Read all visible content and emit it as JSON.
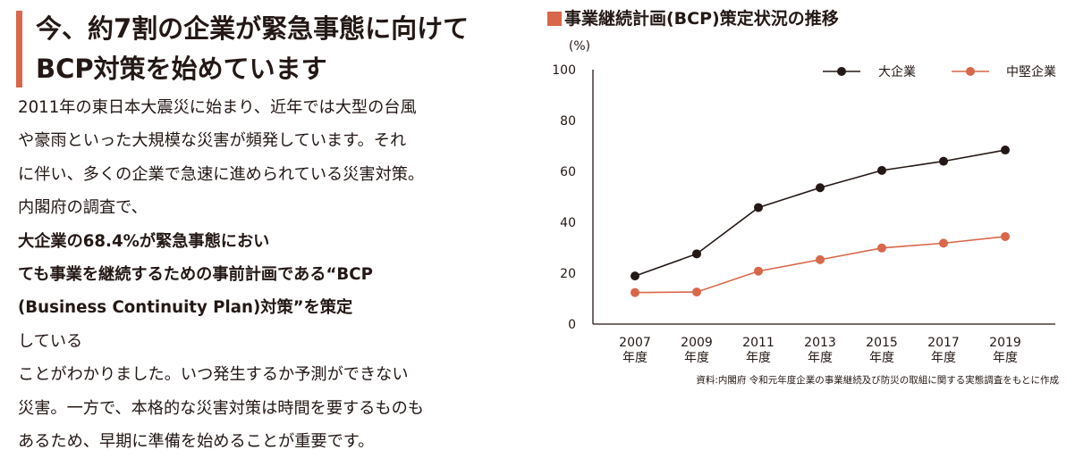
{
  "article": {
    "headline_lines": [
      "今、約7割の企業が緊急事態に向けて",
      "BCP対策を始めています"
    ],
    "body_lines": [
      [
        {
          "t": "2011年の東日本大震災に始まり、近年では大型の台風",
          "b": false
        }
      ],
      [
        {
          "t": "や豪雨といった大規模な災害が頻発しています。それ",
          "b": false
        }
      ],
      [
        {
          "t": "に伴い、多くの企業で急速に進められている災害対策。",
          "b": false
        }
      ],
      [
        {
          "t": "内閣府の調査で、",
          "b": false
        },
        {
          "t": "大企業の68.4%が緊急事態におい",
          "b": true
        }
      ],
      [
        {
          "t": "ても事業を継続するための事前計画である“BCP",
          "b": true
        }
      ],
      [
        {
          "t": "(Business Continuity Plan)対策”を策定",
          "b": true
        },
        {
          "t": "している",
          "b": false
        }
      ],
      [
        {
          "t": "ことがわかりました。いつ発生するか予測ができない",
          "b": false
        }
      ],
      [
        {
          "t": "災害。一方で、本格的な災害対策は時間を要するものも",
          "b": false
        }
      ],
      [
        {
          "t": "あるため、早期に準備を始めることが重要です。",
          "b": false
        }
      ]
    ]
  },
  "chart_data": {
    "type": "line",
    "title": "事業継続計画(BCP)策定状況の推移",
    "ylabel": "(%)",
    "ylim": [
      0,
      100
    ],
    "yticks": [
      "0",
      "20",
      "40",
      "60",
      "80",
      "100"
    ],
    "categories": [
      "2007",
      "2009",
      "2011",
      "2013",
      "2015",
      "2017",
      "2019"
    ],
    "category_suffix": "年度",
    "series": [
      {
        "name": "大企業",
        "color": "#231815",
        "values": [
          18.9,
          27.6,
          45.8,
          53.6,
          60.4,
          64.0,
          68.4
        ]
      },
      {
        "name": "中堅企業",
        "color": "#d9674a",
        "values": [
          12.4,
          12.6,
          20.8,
          25.3,
          29.9,
          31.8,
          34.4
        ]
      }
    ],
    "grid": false,
    "legend": "top-right",
    "source": "資料:内閣府 令和元年度企業の事業継続及び防災の取組に関する実態調査をもとに作成"
  }
}
